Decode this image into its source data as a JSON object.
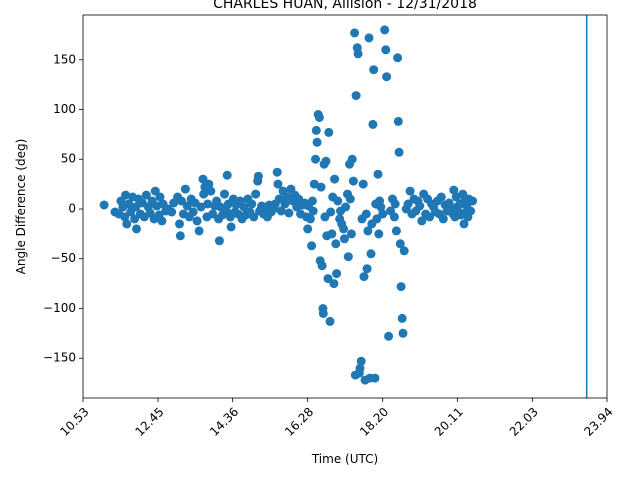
{
  "chart_data": {
    "type": "scatter",
    "title": "CHARLES HUAN, Allision - 12/31/2018",
    "xlabel": "Time (UTC)",
    "ylabel": "Angle Difference (deg)",
    "xlim": [
      10.53,
      23.94
    ],
    "ylim": [
      -190,
      195
    ],
    "x_ticks": [
      10.53,
      12.45,
      14.36,
      16.28,
      18.2,
      20.11,
      22.03,
      23.94
    ],
    "x_tick_labels": [
      "10.53",
      "12.45",
      "14.36",
      "16.28",
      "18.20",
      "20.11",
      "22.03",
      "23.94"
    ],
    "y_ticks": [
      -150,
      -100,
      -50,
      0,
      50,
      100,
      150
    ],
    "y_tick_labels": [
      "−150",
      "−100",
      "−50",
      "0",
      "50",
      "100",
      "150"
    ],
    "grid": false,
    "marker_color": "#1f77b4",
    "vline_x": 23.42,
    "points": [
      [
        11.07,
        4
      ],
      [
        11.35,
        -3
      ],
      [
        11.45,
        -5
      ],
      [
        11.5,
        8
      ],
      [
        11.55,
        2
      ],
      [
        11.6,
        -8
      ],
      [
        11.62,
        14
      ],
      [
        11.65,
        -15
      ],
      [
        11.7,
        5
      ],
      [
        11.75,
        -3
      ],
      [
        11.8,
        12
      ],
      [
        11.85,
        -10
      ],
      [
        11.88,
        2
      ],
      [
        11.9,
        -20
      ],
      [
        11.95,
        10
      ],
      [
        12.0,
        -5
      ],
      [
        12.05,
        6
      ],
      [
        12.1,
        -8
      ],
      [
        12.15,
        14
      ],
      [
        12.2,
        2
      ],
      [
        12.25,
        -4
      ],
      [
        12.3,
        8
      ],
      [
        12.35,
        -10
      ],
      [
        12.38,
        18
      ],
      [
        12.42,
        3
      ],
      [
        12.48,
        -6
      ],
      [
        12.5,
        12
      ],
      [
        12.55,
        -12
      ],
      [
        12.58,
        5
      ],
      [
        12.65,
        -2
      ],
      [
        12.7,
        0
      ],
      [
        12.8,
        -3
      ],
      [
        12.85,
        6
      ],
      [
        12.95,
        12
      ],
      [
        13.0,
        -15
      ],
      [
        13.02,
        -27
      ],
      [
        13.05,
        8
      ],
      [
        13.1,
        -5
      ],
      [
        13.15,
        20
      ],
      [
        13.2,
        3
      ],
      [
        13.25,
        -8
      ],
      [
        13.3,
        10
      ],
      [
        13.35,
        -3
      ],
      [
        13.4,
        6
      ],
      [
        13.45,
        -12
      ],
      [
        13.5,
        -22
      ],
      [
        13.55,
        2
      ],
      [
        13.6,
        30
      ],
      [
        13.62,
        15
      ],
      [
        13.65,
        22
      ],
      [
        13.7,
        -8
      ],
      [
        13.72,
        5
      ],
      [
        13.75,
        25
      ],
      [
        13.8,
        18
      ],
      [
        13.85,
        -5
      ],
      [
        13.9,
        3
      ],
      [
        13.95,
        8
      ],
      [
        14.0,
        -10
      ],
      [
        14.02,
        -32
      ],
      [
        14.05,
        2
      ],
      [
        14.1,
        -6
      ],
      [
        14.15,
        15
      ],
      [
        14.2,
        -2
      ],
      [
        14.22,
        34
      ],
      [
        14.25,
        5
      ],
      [
        14.3,
        -8
      ],
      [
        14.32,
        -18
      ],
      [
        14.38,
        10
      ],
      [
        14.42,
        -3
      ],
      [
        14.45,
        4
      ],
      [
        14.5,
        -5
      ],
      [
        14.55,
        8
      ],
      [
        14.6,
        -10
      ],
      [
        14.65,
        2
      ],
      [
        14.7,
        -6
      ],
      [
        14.75,
        10
      ],
      [
        14.8,
        -3
      ],
      [
        14.85,
        5
      ],
      [
        14.9,
        -8
      ],
      [
        14.95,
        15
      ],
      [
        15.0,
        28
      ],
      [
        15.02,
        33
      ],
      [
        15.05,
        -2
      ],
      [
        15.1,
        3
      ],
      [
        15.15,
        -5
      ],
      [
        15.2,
        2
      ],
      [
        15.25,
        -8
      ],
      [
        15.3,
        4
      ],
      [
        15.35,
        -3
      ],
      [
        15.4,
        0
      ],
      [
        15.45,
        5
      ],
      [
        15.5,
        37
      ],
      [
        15.52,
        25
      ],
      [
        15.55,
        10
      ],
      [
        15.6,
        -2
      ],
      [
        15.65,
        18
      ],
      [
        15.7,
        5
      ],
      [
        15.75,
        12
      ],
      [
        15.8,
        -4
      ],
      [
        15.85,
        20
      ],
      [
        15.9,
        8
      ],
      [
        15.95,
        14
      ],
      [
        16.0,
        2
      ],
      [
        16.05,
        10
      ],
      [
        16.1,
        -5
      ],
      [
        16.15,
        4
      ],
      [
        16.2,
        6
      ],
      [
        16.25,
        -8
      ],
      [
        16.28,
        -20
      ],
      [
        16.3,
        3
      ],
      [
        16.35,
        -10
      ],
      [
        16.38,
        -37
      ],
      [
        16.4,
        8
      ],
      [
        16.42,
        -2
      ],
      [
        16.45,
        25
      ],
      [
        16.48,
        50
      ],
      [
        16.5,
        79
      ],
      [
        16.52,
        67
      ],
      [
        16.55,
        95
      ],
      [
        16.58,
        92
      ],
      [
        16.6,
        -52
      ],
      [
        16.62,
        22
      ],
      [
        16.65,
        -57
      ],
      [
        16.67,
        -100
      ],
      [
        16.68,
        -105
      ],
      [
        16.7,
        45
      ],
      [
        16.72,
        -8
      ],
      [
        16.75,
        48
      ],
      [
        16.77,
        -27
      ],
      [
        16.8,
        -70
      ],
      [
        16.82,
        77
      ],
      [
        16.85,
        -113
      ],
      [
        16.87,
        -3
      ],
      [
        16.9,
        -25
      ],
      [
        16.92,
        12
      ],
      [
        16.95,
        -75
      ],
      [
        16.97,
        30
      ],
      [
        17.0,
        -35
      ],
      [
        17.02,
        -65
      ],
      [
        17.05,
        8
      ],
      [
        17.1,
        -10
      ],
      [
        17.12,
        -2
      ],
      [
        17.15,
        -15
      ],
      [
        17.2,
        -20
      ],
      [
        17.22,
        -30
      ],
      [
        17.25,
        2
      ],
      [
        17.3,
        15
      ],
      [
        17.32,
        -48
      ],
      [
        17.35,
        45
      ],
      [
        17.37,
        10
      ],
      [
        17.4,
        -25
      ],
      [
        17.42,
        50
      ],
      [
        17.45,
        28
      ],
      [
        17.48,
        177
      ],
      [
        17.5,
        -167
      ],
      [
        17.52,
        114
      ],
      [
        17.55,
        162
      ],
      [
        17.57,
        156
      ],
      [
        17.6,
        -165
      ],
      [
        17.62,
        -160
      ],
      [
        17.65,
        -153
      ],
      [
        17.67,
        -10
      ],
      [
        17.7,
        25
      ],
      [
        17.72,
        -68
      ],
      [
        17.75,
        -172
      ],
      [
        17.78,
        -5
      ],
      [
        17.8,
        -60
      ],
      [
        17.82,
        -22
      ],
      [
        17.85,
        172
      ],
      [
        17.87,
        -170
      ],
      [
        17.9,
        -45
      ],
      [
        17.92,
        -15
      ],
      [
        17.95,
        85
      ],
      [
        17.97,
        140
      ],
      [
        18.0,
        -170
      ],
      [
        18.02,
        5
      ],
      [
        18.05,
        -10
      ],
      [
        18.08,
        35
      ],
      [
        18.1,
        -25
      ],
      [
        18.12,
        8
      ],
      [
        18.15,
        2
      ],
      [
        18.2,
        -5
      ],
      [
        18.25,
        180
      ],
      [
        18.28,
        160
      ],
      [
        18.3,
        133
      ],
      [
        18.35,
        -128
      ],
      [
        18.4,
        -2
      ],
      [
        18.45,
        10
      ],
      [
        18.5,
        -8
      ],
      [
        18.52,
        5
      ],
      [
        18.55,
        -22
      ],
      [
        18.58,
        152
      ],
      [
        18.6,
        88
      ],
      [
        18.62,
        57
      ],
      [
        18.65,
        -35
      ],
      [
        18.67,
        -78
      ],
      [
        18.7,
        -110
      ],
      [
        18.72,
        -125
      ],
      [
        18.75,
        -42
      ],
      [
        18.8,
        0
      ],
      [
        18.85,
        5
      ],
      [
        18.9,
        18
      ],
      [
        18.95,
        -5
      ],
      [
        19.0,
        10
      ],
      [
        19.05,
        -2
      ],
      [
        19.1,
        8
      ],
      [
        19.15,
        3
      ],
      [
        19.2,
        -12
      ],
      [
        19.25,
        15
      ],
      [
        19.3,
        -5
      ],
      [
        19.35,
        10
      ],
      [
        19.4,
        -8
      ],
      [
        19.45,
        5
      ],
      [
        19.5,
        2
      ],
      [
        19.55,
        -3
      ],
      [
        19.6,
        8
      ],
      [
        19.65,
        -5
      ],
      [
        19.7,
        12
      ],
      [
        19.75,
        -10
      ],
      [
        19.8,
        4
      ],
      [
        19.85,
        -2
      ],
      [
        19.9,
        6
      ],
      [
        19.95,
        0
      ],
      [
        20.0,
        -5
      ],
      [
        20.02,
        19
      ],
      [
        20.05,
        -8
      ],
      [
        20.08,
        12
      ],
      [
        20.1,
        2
      ],
      [
        20.15,
        -3
      ],
      [
        20.18,
        5
      ],
      [
        20.2,
        -6
      ],
      [
        20.25,
        15
      ],
      [
        20.28,
        -15
      ],
      [
        20.3,
        8
      ],
      [
        20.32,
        -4
      ],
      [
        20.35,
        3
      ],
      [
        20.38,
        -8
      ],
      [
        20.4,
        10
      ],
      [
        20.45,
        -2
      ],
      [
        20.5,
        8
      ]
    ]
  }
}
